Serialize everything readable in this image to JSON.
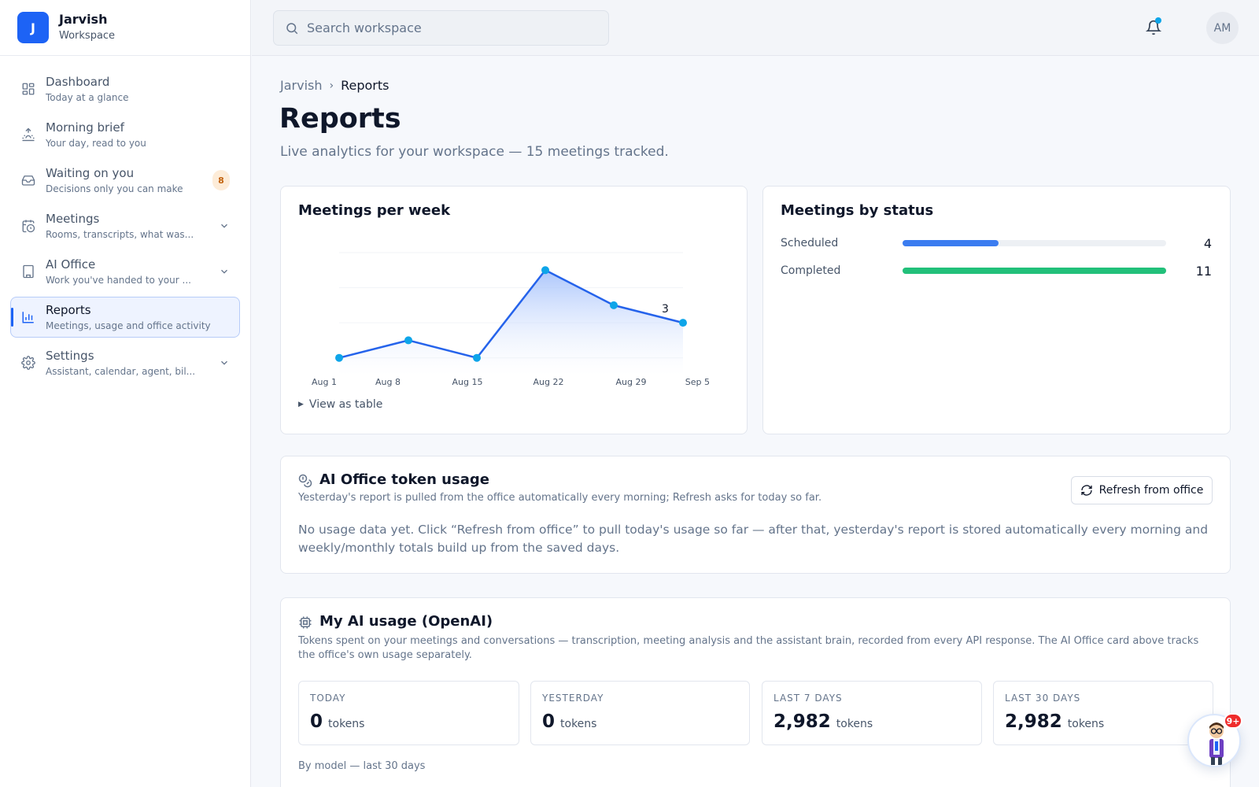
{
  "brand": {
    "initial": "J",
    "name": "Jarvish",
    "subtitle": "Workspace"
  },
  "sidebar": {
    "items": [
      {
        "label": "Dashboard",
        "desc": "Today at a glance",
        "icon": "grid-icon"
      },
      {
        "label": "Morning brief",
        "desc": "Your day, read to you",
        "icon": "sunrise-icon"
      },
      {
        "label": "Waiting on you",
        "desc": "Decisions only you can make",
        "icon": "inbox-icon",
        "badge": "8"
      },
      {
        "label": "Meetings",
        "desc": "Rooms, transcripts, what was...",
        "icon": "calendar-clock-icon",
        "expandable": true
      },
      {
        "label": "AI Office",
        "desc": "Work you've handed to your ...",
        "icon": "building-icon",
        "expandable": true
      },
      {
        "label": "Reports",
        "desc": "Meetings, usage and office activity",
        "icon": "bar-chart-icon",
        "active": true
      },
      {
        "label": "Settings",
        "desc": "Assistant, calendar, agent, bil...",
        "icon": "gear-icon",
        "expandable": true
      }
    ]
  },
  "topbar": {
    "search_placeholder": "Search workspace",
    "avatar_initials": "AM"
  },
  "breadcrumb": {
    "root": "Jarvish",
    "separator": "›",
    "current": "Reports"
  },
  "page": {
    "title": "Reports",
    "subtitle": "Live analytics for your workspace — 15 meetings tracked."
  },
  "meetings_chart": {
    "title": "Meetings per week",
    "view_table": "View as table"
  },
  "chart_data": {
    "type": "area",
    "title": "Meetings per week",
    "categories": [
      "Aug 1",
      "Aug 8",
      "Aug 15",
      "Aug 22",
      "Aug 29",
      "Sep 5"
    ],
    "x": [
      "Aug 1",
      "Aug 8",
      "Aug 15",
      "Aug 22",
      "Aug 29",
      "Sep 5"
    ],
    "values": [
      1,
      2,
      1,
      6,
      4,
      3
    ],
    "data_labels": [
      {
        "index": 5,
        "text": "3"
      }
    ],
    "ylim": [
      0,
      7
    ],
    "grid": true,
    "colors": {
      "line": "#2563eb",
      "point": "#0ea5e9",
      "fill_top": "#9dbcfb",
      "fill_bottom": "#ffffff"
    }
  },
  "status_card": {
    "title": "Meetings by status",
    "rows": [
      {
        "label": "Scheduled",
        "value": "4",
        "fraction": 0.3636,
        "color": "#3b7cf0"
      },
      {
        "label": "Completed",
        "value": "11",
        "fraction": 1.0,
        "color": "#22c07a"
      }
    ]
  },
  "token_usage": {
    "title": "AI Office token usage",
    "desc": "Yesterday's report is pulled from the office automatically every morning; Refresh asks for today so far.",
    "refresh_label": "Refresh from office",
    "empty_text": "No usage data yet. Click “Refresh from office” to pull today's usage so far — after that, yesterday's report is stored automatically every morning and weekly/monthly totals build up from the saved days."
  },
  "my_usage": {
    "title": "My AI usage (OpenAI)",
    "desc": "Tokens spent on your meetings and conversations — transcription, meeting analysis and the assistant brain, recorded from every API response. The AI Office card above tracks the office's own usage separately.",
    "stats": [
      {
        "label": "TODAY",
        "value": "0",
        "unit": "tokens"
      },
      {
        "label": "YESTERDAY",
        "value": "0",
        "unit": "tokens"
      },
      {
        "label": "LAST 7 DAYS",
        "value": "2,982",
        "unit": "tokens"
      },
      {
        "label": "LAST 30 DAYS",
        "value": "2,982",
        "unit": "tokens"
      }
    ],
    "by_model": "By model — last 30 days"
  },
  "assistant": {
    "badge": "9+"
  }
}
